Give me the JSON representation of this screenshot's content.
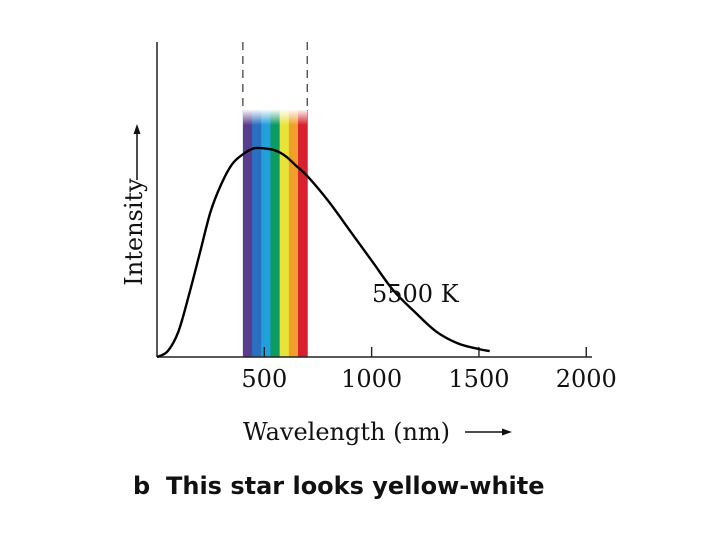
{
  "chart_data": {
    "type": "line",
    "panel_label": "b",
    "caption": "This star looks yellow-white",
    "xlabel": "Wavelength (nm)",
    "ylabel": "Intensity",
    "curve_label": "5500 K",
    "temperature_K": 5500,
    "xlim": [
      0,
      2050
    ],
    "ylim": [
      0,
      1.55
    ],
    "x_ticks": [
      500,
      1000,
      1500,
      2000
    ],
    "x_tick_labels": [
      "500",
      "1000",
      "1500",
      "2000"
    ],
    "visible_band_nm": [
      400,
      700
    ],
    "spectrum_colors": [
      "#5a3c8c",
      "#2b6fc0",
      "#21a0db",
      "#0e9a63",
      "#e8e33a",
      "#f0a02a",
      "#d8202f"
    ],
    "grid": false,
    "series": [
      {
        "name": "5500 K",
        "color": "#000000",
        "x": [
          0,
          50,
          100,
          150,
          200,
          250,
          300,
          350,
          400,
          450,
          500,
          550,
          600,
          650,
          700,
          800,
          900,
          1000,
          1100,
          1200,
          1300,
          1400,
          1500,
          1550
        ],
        "y": [
          0.0,
          0.03,
          0.13,
          0.32,
          0.53,
          0.74,
          0.88,
          0.98,
          1.03,
          1.06,
          1.06,
          1.05,
          1.02,
          0.97,
          0.92,
          0.79,
          0.64,
          0.49,
          0.34,
          0.23,
          0.13,
          0.07,
          0.04,
          0.03
        ]
      }
    ]
  }
}
